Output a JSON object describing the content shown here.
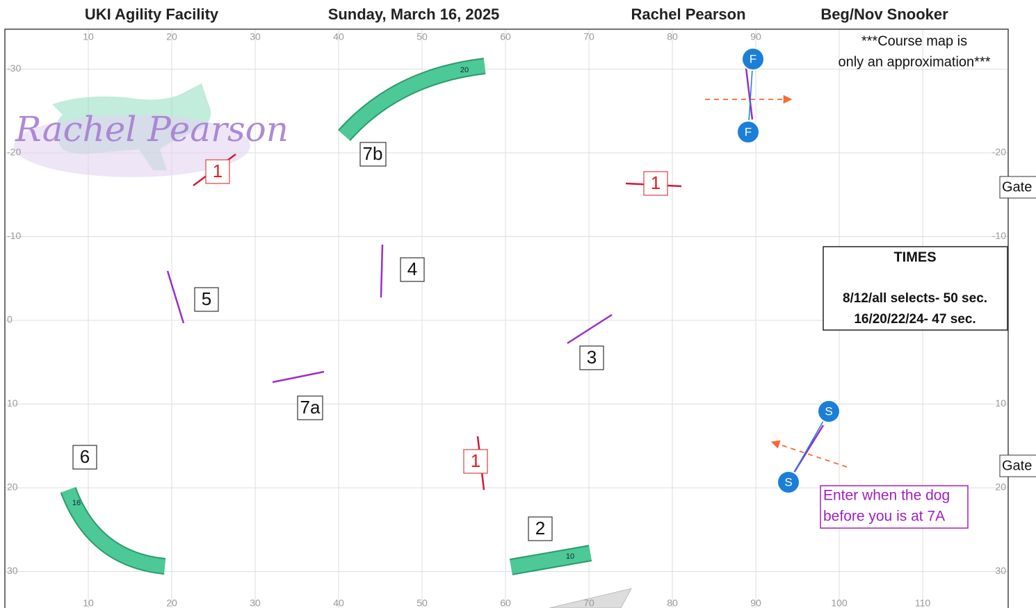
{
  "header": {
    "venue": "UKI Agility Facility",
    "date": "Sunday, March 16, 2025",
    "judge": "Rachel Pearson",
    "class": "Beg/Nov Snooker"
  },
  "axes": {
    "top_ticks": [
      10,
      20,
      30,
      40,
      50,
      60,
      70,
      80,
      90
    ],
    "bottom_ticks": [
      10,
      20,
      30,
      40,
      50,
      60,
      70,
      80,
      90,
      100,
      110
    ],
    "left_ticks": [
      -30,
      -20,
      -10,
      0,
      10,
      20,
      30
    ],
    "right_ticks": [
      -20,
      -10,
      10,
      20,
      30
    ]
  },
  "watermark": "Rachel Pearson",
  "note": [
    "***Course map is",
    "only an approximation***"
  ],
  "times": {
    "title": "TIMES",
    "lines": [
      "8/12/all selects- 50 sec.",
      "16/20/22/24- 47 sec."
    ]
  },
  "gates": [
    "Gate",
    "Gate"
  ],
  "obstacle_labels": [
    "1",
    "1",
    "1",
    "2",
    "3",
    "4",
    "5",
    "6",
    "7a",
    "7b"
  ],
  "tunnel_numbers": [
    "20",
    "16",
    "10"
  ],
  "start_markers": [
    "S",
    "S"
  ],
  "finish_markers": [
    "F",
    "F"
  ],
  "entry_note": [
    "Enter when the dog",
    "before you is at 7A"
  ]
}
